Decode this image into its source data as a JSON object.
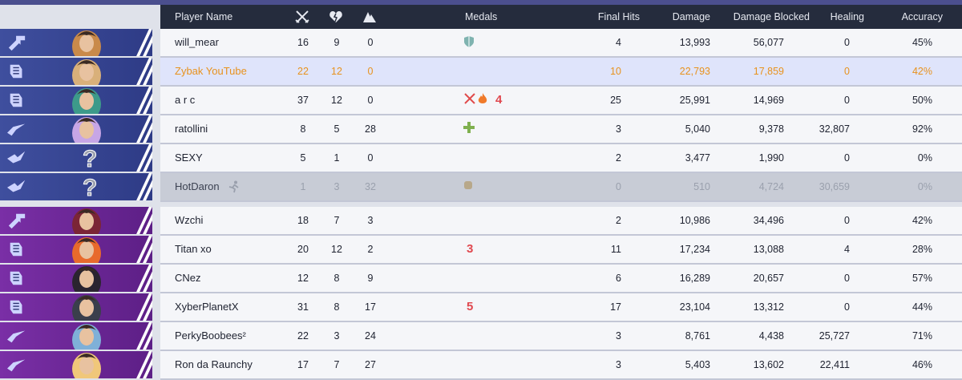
{
  "header": {
    "player_name": "Player Name",
    "medals": "Medals",
    "final_hits": "Final Hits",
    "damage": "Damage",
    "damage_blocked": "Damage Blocked",
    "healing": "Healing",
    "accuracy": "Accuracy",
    "col_icons": [
      "crossed-swords-icon",
      "broken-heart-icon",
      "assist-icon"
    ]
  },
  "colors": {
    "team_blue": "#3f4f9e",
    "team_purple": "#7a2fa6",
    "highlight_text": "#e8921d",
    "header_bg": "#252c3d"
  },
  "team1": [
    {
      "role": "vanguard",
      "name": "will_mear",
      "kills": "16",
      "deaths": "9",
      "assists": "0",
      "medals": [
        "shield-medal-icon"
      ],
      "final_hits": "4",
      "damage": "13,993",
      "blocked": "56,077",
      "healing": "0",
      "accuracy": "45%"
    },
    {
      "role": "duelist",
      "name": "Zybak YouTube",
      "kills": "22",
      "deaths": "12",
      "assists": "0",
      "medals": [],
      "final_hits": "10",
      "damage": "22,793",
      "blocked": "17,859",
      "healing": "0",
      "accuracy": "42%",
      "highlight": true
    },
    {
      "role": "duelist",
      "name": "a r c",
      "kills": "37",
      "deaths": "12",
      "assists": "0",
      "medals": [
        "kills-medal-icon",
        "fire-medal-icon",
        "streak-4-medal-icon"
      ],
      "medal_text": [
        "",
        "",
        "4"
      ],
      "final_hits": "25",
      "damage": "25,991",
      "blocked": "14,969",
      "healing": "0",
      "accuracy": "50%"
    },
    {
      "role": "strategist",
      "name": "ratollini",
      "kills": "8",
      "deaths": "5",
      "assists": "28",
      "medals": [
        "heal-medal-icon"
      ],
      "final_hits": "3",
      "damage": "5,040",
      "blocked": "9,378",
      "healing": "32,807",
      "accuracy": "92%"
    },
    {
      "role": "unknown",
      "name": "SEXY",
      "kills": "5",
      "deaths": "1",
      "assists": "0",
      "medals": [],
      "final_hits": "2",
      "damage": "3,477",
      "blocked": "1,990",
      "healing": "0",
      "accuracy": "0%"
    },
    {
      "role": "unknown",
      "name": "HotDaron",
      "kills": "1",
      "deaths": "3",
      "assists": "32",
      "medals": [
        "fist-medal-icon"
      ],
      "final_hits": "0",
      "damage": "510",
      "blocked": "4,724",
      "healing": "30,659",
      "accuracy": "0%",
      "disconnected": true
    }
  ],
  "team2": [
    {
      "role": "vanguard",
      "name": "Wzchi",
      "kills": "18",
      "deaths": "7",
      "assists": "3",
      "medals": [],
      "final_hits": "2",
      "damage": "10,986",
      "blocked": "34,496",
      "healing": "0",
      "accuracy": "42%"
    },
    {
      "role": "duelist",
      "name": "Titan xo",
      "kills": "20",
      "deaths": "12",
      "assists": "2",
      "medals": [
        "streak-3-medal-icon"
      ],
      "medal_text": [
        "3"
      ],
      "final_hits": "11",
      "damage": "17,234",
      "blocked": "13,088",
      "healing": "4",
      "accuracy": "28%"
    },
    {
      "role": "duelist",
      "name": "CNez",
      "kills": "12",
      "deaths": "8",
      "assists": "9",
      "medals": [],
      "final_hits": "6",
      "damage": "16,289",
      "blocked": "20,657",
      "healing": "0",
      "accuracy": "57%"
    },
    {
      "role": "duelist",
      "name": "XyberPlanetX",
      "kills": "31",
      "deaths": "8",
      "assists": "17",
      "medals": [
        "streak-5-medal-icon"
      ],
      "medal_text": [
        "5"
      ],
      "final_hits": "17",
      "damage": "23,104",
      "blocked": "13,312",
      "healing": "0",
      "accuracy": "44%"
    },
    {
      "role": "strategist",
      "name": "PerkyBoobees²",
      "kills": "22",
      "deaths": "3",
      "assists": "24",
      "medals": [],
      "final_hits": "3",
      "damage": "8,761",
      "blocked": "4,438",
      "healing": "25,727",
      "accuracy": "71%"
    },
    {
      "role": "strategist",
      "name": "Ron da Raunchy",
      "kills": "17",
      "deaths": "7",
      "assists": "27",
      "medals": [],
      "final_hits": "3",
      "damage": "5,403",
      "blocked": "13,602",
      "healing": "22,411",
      "accuracy": "46%"
    }
  ]
}
